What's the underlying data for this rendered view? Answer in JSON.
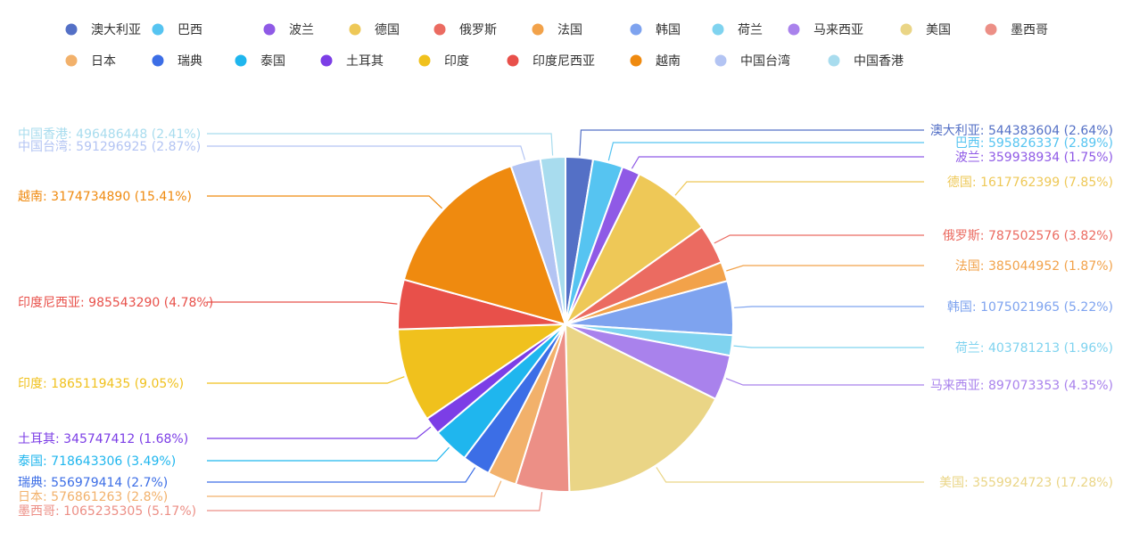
{
  "chart_data": {
    "type": "pie",
    "title": "",
    "legend_position": "top",
    "label_format": "{name}: {value} ({percent}%)",
    "series": [
      {
        "name": "澳大利亚",
        "value": 544383604,
        "percent": "2.64",
        "color": "#5470c6"
      },
      {
        "name": "巴西",
        "value": 595826337,
        "percent": "2.89",
        "color": "#56c4f1"
      },
      {
        "name": "波兰",
        "value": 359938934,
        "percent": "1.75",
        "color": "#8f5ae6"
      },
      {
        "name": "德国",
        "value": 1617762399,
        "percent": "7.85",
        "color": "#eec857"
      },
      {
        "name": "俄罗斯",
        "value": 787502576,
        "percent": "3.82",
        "color": "#eb6b61"
      },
      {
        "name": "法国",
        "value": 385044952,
        "percent": "1.87",
        "color": "#f2a24a"
      },
      {
        "name": "韩国",
        "value": 1075021965,
        "percent": "5.22",
        "color": "#7ea3ef"
      },
      {
        "name": "荷兰",
        "value": 403781213,
        "percent": "1.96",
        "color": "#7fd3ef"
      },
      {
        "name": "马来西亚",
        "value": 897073353,
        "percent": "4.35",
        "color": "#a982ec"
      },
      {
        "name": "美国",
        "value": 3559924723,
        "percent": "17.28",
        "color": "#ead586"
      },
      {
        "name": "墨西哥",
        "value": 1065235305,
        "percent": "5.17",
        "color": "#ec8f86"
      },
      {
        "name": "日本",
        "value": 576861263,
        "percent": "2.8",
        "color": "#f2b16b"
      },
      {
        "name": "瑞典",
        "value": 556979414,
        "percent": "2.7",
        "color": "#3c6ee6"
      },
      {
        "name": "泰国",
        "value": 718643306,
        "percent": "3.49",
        "color": "#1fb6ee"
      },
      {
        "name": "土耳其",
        "value": 345747412,
        "percent": "1.68",
        "color": "#7c3ee6"
      },
      {
        "name": "印度",
        "value": 1865119435,
        "percent": "9.05",
        "color": "#f0c11d"
      },
      {
        "name": "印度尼西亚",
        "value": 985543290,
        "percent": "4.78",
        "color": "#e8504a"
      },
      {
        "name": "越南",
        "value": 3174734890,
        "percent": "15.41",
        "color": "#ef8a0f"
      },
      {
        "name": "中国台湾",
        "value": 591296925,
        "percent": "2.87",
        "color": "#b3c4f3"
      },
      {
        "name": "中国香港",
        "value": 496486448,
        "percent": "2.41",
        "color": "#a8dcee"
      }
    ]
  }
}
